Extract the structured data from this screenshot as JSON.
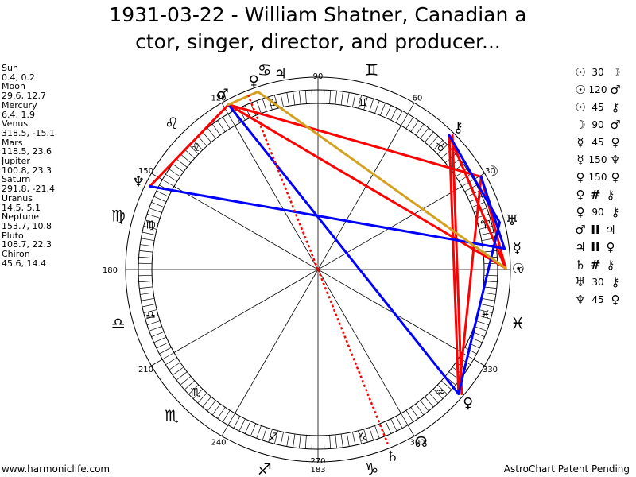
{
  "title": {
    "line1": "1931-03-22 - William Shatner, Canadian a",
    "line2": "ctor, singer, director, and producer..."
  },
  "planets": [
    {
      "name": "Sun",
      "coords": "0.4, 0.2"
    },
    {
      "name": "Moon",
      "coords": "29.6, 12.7"
    },
    {
      "name": "Mercury",
      "coords": "6.4, 1.9"
    },
    {
      "name": "Venus",
      "coords": "318.5, -15.1"
    },
    {
      "name": "Mars",
      "coords": "118.5, 23.6"
    },
    {
      "name": "Jupiter",
      "coords": "100.8, 23.3"
    },
    {
      "name": "Saturn",
      "coords": "291.8, -21.4"
    },
    {
      "name": "Uranus",
      "coords": "14.5, 5.1"
    },
    {
      "name": "Neptune",
      "coords": "153.7, 10.8"
    },
    {
      "name": "Pluto",
      "coords": "108.7, 22.3"
    },
    {
      "name": "Chiron",
      "coords": "45.6, 14.4"
    }
  ],
  "aspects": [
    {
      "p1": "☉",
      "angle": "30",
      "p2": "☽"
    },
    {
      "p1": "☉",
      "angle": "120",
      "p2": "♂"
    },
    {
      "p1": "☉",
      "angle": "45",
      "p2": "⚷"
    },
    {
      "p1": "☽",
      "angle": "90",
      "p2": "♂"
    },
    {
      "p1": "☿",
      "angle": "45",
      "p2": "♀"
    },
    {
      "p1": "☿",
      "angle": "150",
      "p2": "♆"
    },
    {
      "p1": "♀",
      "angle": "150",
      "p2": "♀"
    },
    {
      "p1": "♀",
      "angle": "#",
      "p2": "⚷"
    },
    {
      "p1": "♀",
      "angle": "90",
      "p2": "⚷"
    },
    {
      "p1": "♂",
      "angle": "II",
      "p2": "♃"
    },
    {
      "p1": "♃",
      "angle": "II",
      "p2": "♀"
    },
    {
      "p1": "♄",
      "angle": "#",
      "p2": "⚷"
    },
    {
      "p1": "♅",
      "angle": "30",
      "p2": "⚷"
    },
    {
      "p1": "♆",
      "angle": "45",
      "p2": "♀"
    }
  ],
  "degree_labels": [
    {
      "deg": 0,
      "text": "0"
    },
    {
      "deg": 30,
      "text": "30"
    },
    {
      "deg": 60,
      "text": "60"
    },
    {
      "deg": 90,
      "text": "90"
    },
    {
      "deg": 120,
      "text": "120"
    },
    {
      "deg": 150,
      "text": "150"
    },
    {
      "deg": 180,
      "text": "180"
    },
    {
      "deg": 210,
      "text": "210"
    },
    {
      "deg": 240,
      "text": "240"
    },
    {
      "deg": 270,
      "text": "270"
    },
    {
      "deg": 300,
      "text": "300"
    },
    {
      "deg": 330,
      "text": "330"
    }
  ],
  "mc_label": "183",
  "zodiac_signs": [
    {
      "deg": 15,
      "glyph": "♈"
    },
    {
      "deg": 45,
      "glyph": "♉"
    },
    {
      "deg": 75,
      "glyph": "♊"
    },
    {
      "deg": 105,
      "glyph": "♋"
    },
    {
      "deg": 135,
      "glyph": "♌"
    },
    {
      "deg": 165,
      "glyph": "♍"
    },
    {
      "deg": 195,
      "glyph": "♎"
    },
    {
      "deg": 225,
      "glyph": "♏"
    },
    {
      "deg": 255,
      "glyph": "♐"
    },
    {
      "deg": 285,
      "glyph": "♑"
    },
    {
      "deg": 315,
      "glyph": "♒"
    },
    {
      "deg": 345,
      "glyph": "♓"
    }
  ],
  "planet_glyphs": [
    {
      "name": "Sun",
      "glyph": "☉",
      "deg": 0.4
    },
    {
      "name": "Moon",
      "glyph": "☽",
      "deg": 29.6
    },
    {
      "name": "Mercury",
      "glyph": "☿",
      "deg": 6.4
    },
    {
      "name": "Venus",
      "glyph": "♀",
      "deg": 318.5
    },
    {
      "name": "Mars",
      "glyph": "♂",
      "deg": 118.5
    },
    {
      "name": "Jupiter",
      "glyph": "♃",
      "deg": 100.8
    },
    {
      "name": "Saturn",
      "glyph": "♄",
      "deg": 291.8
    },
    {
      "name": "Uranus",
      "glyph": "♅",
      "deg": 14.5
    },
    {
      "name": "Neptune",
      "glyph": "♆",
      "deg": 153.7
    },
    {
      "name": "Pluto",
      "glyph": "♀",
      "deg": 108.7
    },
    {
      "name": "Chiron",
      "glyph": "⚷",
      "deg": 45.6
    },
    {
      "name": "Node",
      "glyph": "☊",
      "deg": 301
    }
  ],
  "aspect_lines": [
    {
      "from": 0.4,
      "to": 29.6,
      "color": "#ff0000"
    },
    {
      "from": 0.4,
      "to": 118.5,
      "color": "#ff0000"
    },
    {
      "from": 0.4,
      "to": 45.6,
      "color": "#ff0000"
    },
    {
      "from": 29.6,
      "to": 118.5,
      "color": "#ff0000"
    },
    {
      "from": 118.5,
      "to": 153.7,
      "color": "#ff0000"
    },
    {
      "from": 45.6,
      "to": 318.5,
      "color": "#ff0000"
    },
    {
      "from": 45.6,
      "to": 318.5,
      "color": "#ff0000",
      "offset": 1
    },
    {
      "from": 29.6,
      "to": 318.5,
      "color": "#ff0000"
    },
    {
      "from": 6.4,
      "to": 153.7,
      "color": "#0000ff"
    },
    {
      "from": 6.4,
      "to": 29.6,
      "color": "#0000ff"
    },
    {
      "from": 14.5,
      "to": 45.6,
      "color": "#0000ff"
    },
    {
      "from": 118.5,
      "to": 318.5,
      "color": "#0000ff"
    },
    {
      "from": 318.5,
      "to": 14.5,
      "color": "#0000ff"
    },
    {
      "from": 0.4,
      "to": 108.7,
      "color": "#d4a020"
    },
    {
      "from": 108.7,
      "to": 118.5,
      "color": "#d4a020"
    }
  ],
  "saturn_line": {
    "from": 291.8,
    "color": "#ff0000"
  },
  "footer": {
    "left": "www.harmoniclife.com",
    "right": "AstroChart Patent Pending"
  }
}
